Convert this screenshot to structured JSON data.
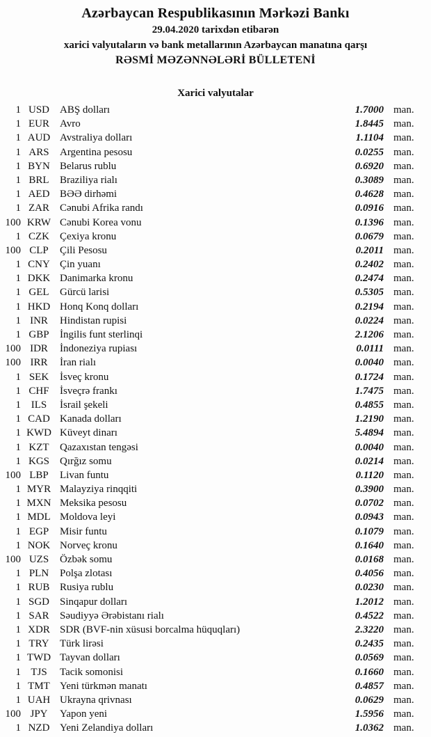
{
  "header": {
    "bank_name": "Azərbaycan Respublikasının Mərkəzi Bankı",
    "date_line": "29.04.2020 tarixdən etibarən",
    "subject_line": "xarici valyutaların və bank metallarının Azərbaycan manatına qarşı",
    "bulletin_title": "RƏSMİ MƏZƏNNƏLƏRİ BÜLLETENİ"
  },
  "section": {
    "title": "Xarici valyutalar"
  },
  "table": {
    "rows": [
      {
        "qty": "1",
        "code": "USD",
        "name": "ABŞ dolları",
        "rate": "1.7000",
        "unit": "man."
      },
      {
        "qty": "1",
        "code": "EUR",
        "name": "Avro",
        "rate": "1.8445",
        "unit": "man."
      },
      {
        "qty": "1",
        "code": "AUD",
        "name": "Avstraliya dolları",
        "rate": "1.1104",
        "unit": "man."
      },
      {
        "qty": "1",
        "code": "ARS",
        "name": "Argentina pesosu",
        "rate": "0.0255",
        "unit": "man."
      },
      {
        "qty": "1",
        "code": "BYN",
        "name": "Belarus rublu",
        "rate": "0.6920",
        "unit": "man."
      },
      {
        "qty": "1",
        "code": "BRL",
        "name": "Braziliya rialı",
        "rate": "0.3089",
        "unit": "man."
      },
      {
        "qty": "1",
        "code": "AED",
        "name": "BƏƏ dirhəmi",
        "rate": "0.4628",
        "unit": "man."
      },
      {
        "qty": "1",
        "code": "ZAR",
        "name": "Cənubi Afrika randı",
        "rate": "0.0916",
        "unit": "man."
      },
      {
        "qty": "100",
        "code": "KRW",
        "name": "Cənubi Korea vonu",
        "rate": "0.1396",
        "unit": "man."
      },
      {
        "qty": "1",
        "code": "CZK",
        "name": "Çexiya kronu",
        "rate": "0.0679",
        "unit": "man."
      },
      {
        "qty": "100",
        "code": "CLP",
        "name": "Çili Pesosu",
        "rate": "0.2011",
        "unit": "man."
      },
      {
        "qty": "1",
        "code": "CNY",
        "name": "Çin yuanı",
        "rate": "0.2402",
        "unit": "man."
      },
      {
        "qty": "1",
        "code": "DKK",
        "name": "Danimarka kronu",
        "rate": "0.2474",
        "unit": "man."
      },
      {
        "qty": "1",
        "code": "GEL",
        "name": "Gürcü larisi",
        "rate": "0.5305",
        "unit": "man."
      },
      {
        "qty": "1",
        "code": "HKD",
        "name": "Honq Konq dolları",
        "rate": "0.2194",
        "unit": "man."
      },
      {
        "qty": "1",
        "code": "INR",
        "name": "Hindistan rupisi",
        "rate": "0.0224",
        "unit": "man."
      },
      {
        "qty": "1",
        "code": "GBP",
        "name": "İngilis funt sterlinqi",
        "rate": "2.1206",
        "unit": "man."
      },
      {
        "qty": "100",
        "code": "IDR",
        "name": "İndoneziya rupiası",
        "rate": "0.0111",
        "unit": "man."
      },
      {
        "qty": "100",
        "code": "IRR",
        "name": "İran rialı",
        "rate": "0.0040",
        "unit": "man."
      },
      {
        "qty": "1",
        "code": "SEK",
        "name": "İsveç kronu",
        "rate": "0.1724",
        "unit": "man."
      },
      {
        "qty": "1",
        "code": "CHF",
        "name": "İsveçrə frankı",
        "rate": "1.7475",
        "unit": "man."
      },
      {
        "qty": "1",
        "code": "ILS",
        "name": "İsrail şekeli",
        "rate": "0.4855",
        "unit": "man."
      },
      {
        "qty": "1",
        "code": "CAD",
        "name": "Kanada dolları",
        "rate": "1.2190",
        "unit": "man."
      },
      {
        "qty": "1",
        "code": "KWD",
        "name": "Küveyt dinarı",
        "rate": "5.4894",
        "unit": "man."
      },
      {
        "qty": "1",
        "code": "KZT",
        "name": "Qazaxıstan tengəsi",
        "rate": "0.0040",
        "unit": "man."
      },
      {
        "qty": "1",
        "code": "KGS",
        "name": "Qırğız somu",
        "rate": "0.0214",
        "unit": "man."
      },
      {
        "qty": "100",
        "code": "LBP",
        "name": "Livan funtu",
        "rate": "0.1120",
        "unit": "man."
      },
      {
        "qty": "1",
        "code": "MYR",
        "name": "Malayziya rinqqiti",
        "rate": "0.3900",
        "unit": "man."
      },
      {
        "qty": "1",
        "code": "MXN",
        "name": "Meksika pesosu",
        "rate": "0.0702",
        "unit": "man."
      },
      {
        "qty": "1",
        "code": "MDL",
        "name": "Moldova leyi",
        "rate": "0.0943",
        "unit": "man."
      },
      {
        "qty": "1",
        "code": "EGP",
        "name": "Misir funtu",
        "rate": "0.1079",
        "unit": "man."
      },
      {
        "qty": "1",
        "code": "NOK",
        "name": "Norveç kronu",
        "rate": "0.1640",
        "unit": "man."
      },
      {
        "qty": "100",
        "code": "UZS",
        "name": "Özbək somu",
        "rate": "0.0168",
        "unit": "man."
      },
      {
        "qty": "1",
        "code": "PLN",
        "name": "Polşa zlotası",
        "rate": "0.4056",
        "unit": "man."
      },
      {
        "qty": "1",
        "code": "RUB",
        "name": "Rusiya rublu",
        "rate": "0.0230",
        "unit": "man."
      },
      {
        "qty": "1",
        "code": "SGD",
        "name": "Sinqapur dolları",
        "rate": "1.2012",
        "unit": "man."
      },
      {
        "qty": "1",
        "code": "SAR",
        "name": "Səudiyyə Ərəbistanı rialı",
        "rate": "0.4522",
        "unit": "man."
      },
      {
        "qty": "1",
        "code": "XDR",
        "name": "SDR (BVF-nin xüsusi borcalma hüquqları)",
        "rate": "2.3220",
        "unit": "man."
      },
      {
        "qty": "1",
        "code": "TRY",
        "name": "Türk lirəsi",
        "rate": "0.2435",
        "unit": "man."
      },
      {
        "qty": "1",
        "code": "TWD",
        "name": "Tayvan dolları",
        "rate": "0.0569",
        "unit": "man."
      },
      {
        "qty": "1",
        "code": "TJS",
        "name": "Tacik somonisi",
        "rate": "0.1660",
        "unit": "man."
      },
      {
        "qty": "1",
        "code": "TMT",
        "name": "Yeni türkmən manatı",
        "rate": "0.4857",
        "unit": "man."
      },
      {
        "qty": "1",
        "code": "UAH",
        "name": "Ukrayna qrivnası",
        "rate": "0.0629",
        "unit": "man."
      },
      {
        "qty": "100",
        "code": "JPY",
        "name": "Yapon yeni",
        "rate": "1.5956",
        "unit": "man."
      },
      {
        "qty": "1",
        "code": "NZD",
        "name": "Yeni Zelandiya dolları",
        "rate": "1.0362",
        "unit": "man."
      }
    ]
  }
}
